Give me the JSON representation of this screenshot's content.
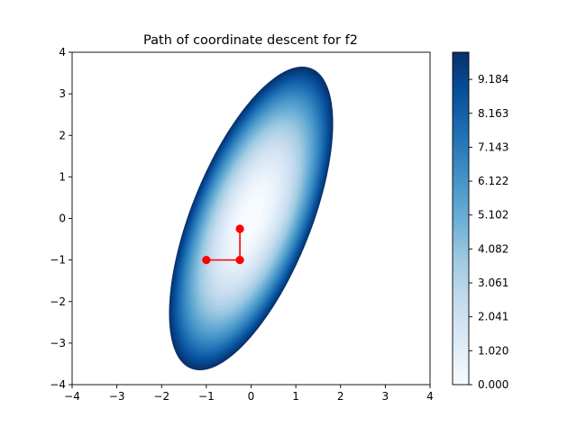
{
  "chart_data": {
    "type": "contourf",
    "title": "Path of coordinate descent for f2",
    "xlabel": "",
    "ylabel": "",
    "xlim": [
      -4,
      4
    ],
    "ylim": [
      -4,
      4
    ],
    "x_ticks": [
      "−4",
      "−3",
      "−2",
      "−1",
      "0",
      "1",
      "2",
      "3",
      "4"
    ],
    "y_ticks": [
      "−4",
      "−3",
      "−2",
      "−1",
      "0",
      "1",
      "2",
      "3",
      "4"
    ],
    "colormap": "Blues",
    "colorbar": {
      "range": [
        0,
        10
      ],
      "ticks": [
        "0.000",
        "1.020",
        "2.041",
        "3.061",
        "4.082",
        "5.102",
        "6.122",
        "7.143",
        "8.163",
        "9.184"
      ],
      "levels": 49
    },
    "filled_region": {
      "shape": "ellipse",
      "center": [
        0,
        0
      ],
      "semi_axes": [
        3.85,
        1.35
      ],
      "angle_deg_from_x": 70
    },
    "path": {
      "color": "#ff0000",
      "points": [
        [
          -1.0,
          -1.0
        ],
        [
          -0.25,
          -1.0
        ],
        [
          -0.25,
          -0.25
        ]
      ]
    }
  }
}
